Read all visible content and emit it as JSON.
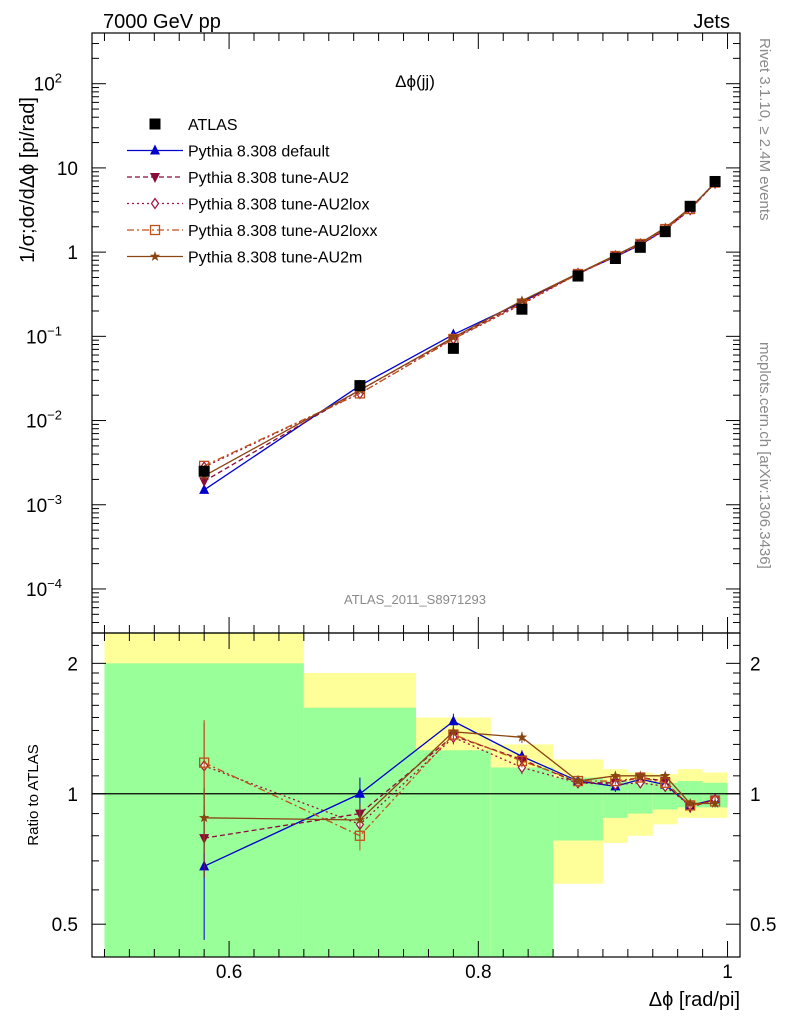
{
  "header": {
    "left": "7000 GeV pp",
    "right": "Jets"
  },
  "side_text": {
    "rivet": "Rivet 3.1.10, ≥ 2.4M events",
    "mcplots": "mcplots.cern.ch [arXiv:1306.3436]"
  },
  "colors": {
    "atlas": "#000000",
    "default": "#0000cc",
    "au2": "#8b0a3a",
    "au2lox": "#a01040",
    "au2loxx": "#c0501a",
    "au2m": "#8b4513",
    "band1": "#99ff99",
    "band2": "#ffff99"
  },
  "chart_data": [
    {
      "type": "scatter",
      "title": "Δϕ(jj)",
      "ylabel": "1/σ;dσ/dΔϕ [pi/rad]",
      "xlabel": "Δϕ [rad/pi]",
      "xlim": [
        0.49,
        1.01
      ],
      "ylim": [
        3e-05,
        400
      ],
      "yscale": "log",
      "watermark": "ATLAS_2011_S8971293",
      "yticks": [
        {
          "v": 0.0001,
          "base": "10",
          "exp": "−4"
        },
        {
          "v": 0.001,
          "base": "10",
          "exp": "−3"
        },
        {
          "v": 0.01,
          "base": "10",
          "exp": "−2"
        },
        {
          "v": 0.1,
          "base": "10",
          "exp": "−1"
        },
        {
          "v": 1,
          "base": "1",
          "exp": ""
        },
        {
          "v": 10,
          "base": "10",
          "exp": ""
        },
        {
          "v": 100,
          "base": "10",
          "exp": "2"
        }
      ],
      "legend_position": "top-left",
      "series": [
        {
          "name": "ATLAS",
          "key": "atlas",
          "marker": "square",
          "x": [
            0.58,
            0.705,
            0.78,
            0.835,
            0.88,
            0.91,
            0.93,
            0.95,
            0.97,
            0.99
          ],
          "y": [
            0.0025,
            0.026,
            0.072,
            0.21,
            0.52,
            0.84,
            1.14,
            1.75,
            3.5,
            6.9
          ]
        },
        {
          "name": "Pythia 8.308 default",
          "key": "default",
          "marker": "triangle-up",
          "x": [
            0.58,
            0.705,
            0.78,
            0.835,
            0.88,
            0.91,
            0.93,
            0.95,
            0.97,
            0.99
          ],
          "y": [
            0.0015,
            0.026,
            0.105,
            0.255,
            0.56,
            0.88,
            1.22,
            1.85,
            3.3,
            6.7
          ]
        },
        {
          "name": "Pythia 8.308 tune-AU2",
          "key": "au2",
          "marker": "triangle-down",
          "x": [
            0.58,
            0.705,
            0.78,
            0.835,
            0.88,
            0.91,
            0.93,
            0.95,
            0.97,
            0.99
          ],
          "y": [
            0.0019,
            0.023,
            0.095,
            0.25,
            0.55,
            0.9,
            1.25,
            1.85,
            3.2,
            6.7
          ]
        },
        {
          "name": "Pythia 8.308 tune-AU2lox",
          "key": "au2lox",
          "marker": "diamond",
          "x": [
            0.58,
            0.705,
            0.78,
            0.835,
            0.88,
            0.91,
            0.93,
            0.95,
            0.97,
            0.99
          ],
          "y": [
            0.0028,
            0.021,
            0.093,
            0.24,
            0.55,
            0.89,
            1.22,
            1.83,
            3.2,
            6.6
          ]
        },
        {
          "name": "Pythia 8.308 tune-AU2loxx",
          "key": "au2loxx",
          "marker": "square-open",
          "x": [
            0.58,
            0.705,
            0.78,
            0.835,
            0.88,
            0.91,
            0.93,
            0.95,
            0.97,
            0.99
          ],
          "y": [
            0.0029,
            0.021,
            0.093,
            0.245,
            0.55,
            0.9,
            1.25,
            1.88,
            3.25,
            6.7
          ]
        },
        {
          "name": "Pythia 8.308 tune-AU2m",
          "key": "au2m",
          "marker": "star",
          "x": [
            0.58,
            0.705,
            0.78,
            0.835,
            0.88,
            0.91,
            0.93,
            0.95,
            0.97,
            0.99
          ],
          "y": [
            0.0022,
            0.023,
            0.097,
            0.265,
            0.56,
            0.92,
            1.28,
            1.95,
            3.35,
            6.6
          ]
        }
      ]
    },
    {
      "type": "line",
      "ylabel": "Ratio to ATLAS",
      "xlabel": "Δϕ [rad/pi]",
      "xlim": [
        0.49,
        1.01
      ],
      "ylim": [
        0.42,
        2.35
      ],
      "yscale": "log",
      "yticks": [
        {
          "v": 0.5,
          "label": "0.5"
        },
        {
          "v": 1,
          "label": "1"
        },
        {
          "v": 2,
          "label": "2"
        }
      ],
      "xticks": [
        {
          "v": 0.6,
          "label": "0.6"
        },
        {
          "v": 0.8,
          "label": "0.8"
        },
        {
          "v": 1,
          "label": "1"
        }
      ],
      "bands": {
        "edges": [
          0.5,
          0.66,
          0.75,
          0.81,
          0.86,
          0.9,
          0.92,
          0.94,
          0.96,
          0.98,
          1.0
        ],
        "inner_lo": [
          0.42,
          0.42,
          0.42,
          0.42,
          0.78,
          0.88,
          0.9,
          0.92,
          0.93,
          0.93
        ],
        "inner_hi": [
          2.0,
          1.58,
          1.26,
          1.15,
          1.09,
          1.07,
          1.06,
          1.06,
          1.07,
          1.06
        ],
        "outer_lo": [
          0.42,
          0.55,
          0.75,
          0.42,
          0.62,
          0.77,
          0.8,
          0.85,
          0.88,
          0.88
        ],
        "outer_hi": [
          2.35,
          1.9,
          1.5,
          1.3,
          1.2,
          1.14,
          1.12,
          1.11,
          1.14,
          1.12
        ]
      },
      "series": [
        {
          "key": "default",
          "marker": "triangle-up",
          "x": [
            0.58,
            0.705,
            0.78,
            0.835,
            0.88,
            0.91,
            0.93,
            0.95,
            0.97,
            0.99
          ],
          "y": [
            0.68,
            1.0,
            1.47,
            1.22,
            1.07,
            1.04,
            1.08,
            1.05,
            0.94,
            0.97
          ],
          "err": [
            0.22,
            0.09,
            0.06,
            0.04,
            0.03,
            0.03,
            0.03,
            0.03,
            0.02,
            0.02
          ]
        },
        {
          "key": "au2",
          "marker": "triangle-down",
          "x": [
            0.58,
            0.705,
            0.78,
            0.835,
            0.88,
            0.91,
            0.93,
            0.95,
            0.97,
            0.99
          ],
          "y": [
            0.79,
            0.9,
            1.36,
            1.2,
            1.06,
            1.06,
            1.09,
            1.07,
            0.93,
            0.97
          ],
          "err": [
            0.15,
            0.05,
            0.05,
            0.03,
            0.02,
            0.02,
            0.02,
            0.02,
            0.02,
            0.02
          ]
        },
        {
          "key": "au2lox",
          "marker": "diamond",
          "x": [
            0.58,
            0.705,
            0.78,
            0.835,
            0.88,
            0.91,
            0.93,
            0.95,
            0.97,
            0.99
          ],
          "y": [
            1.16,
            0.85,
            1.35,
            1.15,
            1.06,
            1.05,
            1.06,
            1.04,
            0.94,
            0.97
          ],
          "err": [
            0.3,
            0.06,
            0.05,
            0.04,
            0.02,
            0.02,
            0.02,
            0.02,
            0.02,
            0.02
          ]
        },
        {
          "key": "au2loxx",
          "marker": "square-open",
          "x": [
            0.58,
            0.705,
            0.78,
            0.835,
            0.88,
            0.91,
            0.93,
            0.95,
            0.97,
            0.99
          ],
          "y": [
            1.18,
            0.8,
            1.37,
            1.19,
            1.07,
            1.07,
            1.09,
            1.06,
            0.94,
            0.96
          ],
          "err": [
            0.3,
            0.06,
            0.05,
            0.04,
            0.02,
            0.02,
            0.02,
            0.02,
            0.02,
            0.02
          ]
        },
        {
          "key": "au2m",
          "marker": "star",
          "x": [
            0.58,
            0.705,
            0.78,
            0.835,
            0.88,
            0.91,
            0.93,
            0.95,
            0.97,
            0.99
          ],
          "y": [
            0.88,
            0.87,
            1.39,
            1.35,
            1.07,
            1.1,
            1.1,
            1.1,
            0.95,
            0.95
          ],
          "err": [
            0.15,
            0.05,
            0.05,
            0.04,
            0.02,
            0.02,
            0.02,
            0.02,
            0.02,
            0.02
          ]
        }
      ]
    }
  ]
}
